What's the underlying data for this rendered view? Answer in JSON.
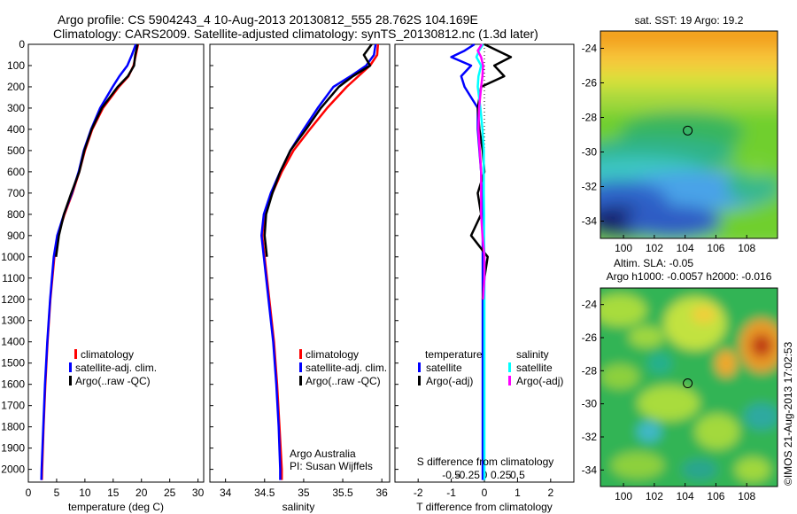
{
  "header": {
    "line1": "Argo profile: CS 5904243_4 10-Aug-2013 20130812_555 28.762S 104.169E",
    "line2": "Climatology: CARS2009. Satellite-adjusted climatology: synTS_20130812.nc (1.3d later)"
  },
  "colors": {
    "climatology": "#ff0000",
    "satellite": "#0000ff",
    "argo": "#000000",
    "salinity_satellite": "#00ffff",
    "salinity_argo": "#ff00ff"
  },
  "depth_ticks": [
    "0",
    "100",
    "200",
    "300",
    "400",
    "500",
    "600",
    "700",
    "800",
    "900",
    "1000",
    "1100",
    "1200",
    "1300",
    "1400",
    "1500",
    "1600",
    "1700",
    "1800",
    "1900",
    "2000"
  ],
  "chart_data": [
    {
      "type": "line",
      "xlabel": "temperature (deg C)",
      "ylabel": "",
      "xlim": [
        0,
        31
      ],
      "ylim": [
        2060,
        0
      ],
      "xticks": [
        "0",
        "5",
        "10",
        "15",
        "20",
        "25",
        "30"
      ],
      "legend": [
        "climatology",
        "satellite-adj. clim.",
        "Argo(..raw -QC)"
      ],
      "legend_position": "lower-center",
      "depth": [
        0,
        50,
        100,
        150,
        200,
        300,
        400,
        500,
        600,
        700,
        800,
        900,
        1000,
        1200,
        1400,
        1600,
        1800,
        2000,
        2050
      ],
      "series": [
        {
          "name": "climatology",
          "values": [
            19.4,
            19.0,
            18.6,
            17.7,
            16.0,
            13.2,
            11.3,
            10.0,
            9.0,
            7.8,
            6.4,
            5.2,
            4.6,
            3.9,
            3.4,
            3.0,
            2.7,
            2.45,
            2.4
          ]
        },
        {
          "name": "satellite-adj. clim.",
          "values": [
            19.0,
            18.3,
            17.5,
            16.1,
            14.9,
            12.7,
            11.1,
            9.8,
            8.9,
            7.7,
            6.3,
            5.1,
            4.5,
            3.85,
            3.35,
            2.95,
            2.65,
            2.35,
            2.3
          ]
        },
        {
          "name": "Argo(..raw -QC)",
          "values": [
            19.3,
            18.9,
            18.7,
            17.6,
            15.8,
            13.0,
            11.2,
            9.9,
            9.0,
            7.6,
            6.3,
            5.4,
            4.9
          ]
        }
      ]
    },
    {
      "type": "line",
      "xlabel": "salinity",
      "ylabel": "",
      "xlim": [
        33.8,
        36.1
      ],
      "ylim": [
        2060,
        0
      ],
      "xticks": [
        "34",
        "34.5",
        "35",
        "35.5",
        "36"
      ],
      "legend": [
        "climatology",
        "satellite-adj. clim.",
        "Argo(..raw -QC)"
      ],
      "legend_position": "lower-center",
      "annotation": [
        "Argo Australia",
        "PI: Susan Wijffels"
      ],
      "depth": [
        0,
        50,
        100,
        150,
        200,
        300,
        400,
        500,
        600,
        700,
        800,
        900,
        1000,
        1200,
        1400,
        1600,
        1800,
        2000,
        2050
      ],
      "series": [
        {
          "name": "climatology",
          "values": [
            35.95,
            35.94,
            35.85,
            35.7,
            35.55,
            35.3,
            35.08,
            34.87,
            34.72,
            34.6,
            34.5,
            34.47,
            34.5,
            34.56,
            34.62,
            34.66,
            34.69,
            34.72,
            34.72
          ]
        },
        {
          "name": "satellite-adj. clim.",
          "values": [
            35.92,
            35.9,
            35.8,
            35.6,
            35.38,
            35.18,
            35.0,
            34.83,
            34.7,
            34.58,
            34.49,
            34.46,
            34.49,
            34.55,
            34.61,
            34.65,
            34.68,
            34.7,
            34.7
          ]
        },
        {
          "name": "Argo(..raw -QC)",
          "values": [
            35.87,
            35.77,
            35.85,
            35.63,
            35.45,
            35.22,
            35.03,
            34.83,
            34.7,
            34.6,
            34.52,
            34.5,
            34.53
          ]
        }
      ]
    },
    {
      "type": "line",
      "xlabel": "T difference from climatology",
      "ylabel": "",
      "xlim": [
        -2.7,
        2.7
      ],
      "ylim": [
        2060,
        0
      ],
      "xticks": [
        "-2",
        "-1",
        "0",
        "1",
        "2"
      ],
      "top_axis_label": "S difference from climatology",
      "top_axis_ticks": [
        "-0.5",
        "-0.25",
        "0",
        "0.25",
        "0.5"
      ],
      "legend": [
        "temperature",
        "salinity",
        "satellite",
        "Argo(-adj)",
        "satellite",
        "Argo(-adj)"
      ],
      "legend_position": "lower-center",
      "depth": [
        0,
        30,
        60,
        100,
        150,
        200,
        300,
        400,
        500,
        600,
        700,
        800,
        900,
        1000,
        1100,
        1200,
        1500,
        1800,
        2050
      ],
      "series": [
        {
          "name": "temperature satellite",
          "values": [
            -0.3,
            -0.6,
            -1.0,
            -0.4,
            -0.7,
            -0.6,
            -0.2,
            -0.2,
            -0.15,
            -0.1,
            -0.08,
            -0.05,
            -0.05,
            -0.05,
            -0.05,
            -0.05,
            -0.05,
            -0.05,
            -0.05
          ]
        },
        {
          "name": "temperature Argo(-adj)",
          "values": [
            0.0,
            0.4,
            0.8,
            0.3,
            0.6,
            -0.1,
            -0.2,
            -0.15,
            -0.05,
            0.0,
            -0.2,
            -0.1,
            -0.4,
            0.1,
            0.0,
            -0.05
          ]
        },
        {
          "name": "salinity satellite",
          "values": [
            -0.02,
            -0.08,
            -0.12,
            -0.05,
            -0.09,
            -0.1,
            -0.06,
            -0.03,
            -0.01,
            -0.01,
            -0.01,
            -0.005,
            -0.005,
            0.0,
            0.0,
            0.0,
            0.0,
            0.0,
            0.0
          ]
        },
        {
          "name": "salinity Argo(-adj)",
          "values": [
            -0.04,
            -0.1,
            -0.05,
            -0.02,
            -0.03,
            -0.05,
            -0.08,
            -0.09,
            -0.07,
            -0.05,
            -0.05,
            -0.05,
            -0.03,
            0.0,
            0.0,
            -0.02
          ]
        }
      ]
    },
    {
      "type": "heatmap",
      "title": "sat. SST: 19 Argo: 19.2",
      "xticks": [
        "100",
        "102",
        "104",
        "106",
        "108"
      ],
      "yticks": [
        "-24",
        "-26",
        "-28",
        "-30",
        "-32",
        "-34"
      ],
      "xlim": [
        98.5,
        110.0
      ],
      "ylim": [
        -35.0,
        -23.0
      ],
      "marker": {
        "lon": 104.17,
        "lat": -28.76
      }
    },
    {
      "type": "heatmap",
      "title": "Altim. SLA: -0.05",
      "subtitle": "Argo h1000: -0.0057 h2000: -0.016",
      "xticks": [
        "100",
        "102",
        "104",
        "106",
        "108"
      ],
      "yticks": [
        "-24",
        "-26",
        "-28",
        "-30",
        "-32",
        "-34"
      ],
      "xlim": [
        98.5,
        110.0
      ],
      "ylim": [
        -35.0,
        -23.0
      ],
      "marker": {
        "lon": 104.17,
        "lat": -28.76
      }
    }
  ],
  "footer": {
    "stamp": "©IMOS 21-Aug-2013 17:02:53"
  }
}
